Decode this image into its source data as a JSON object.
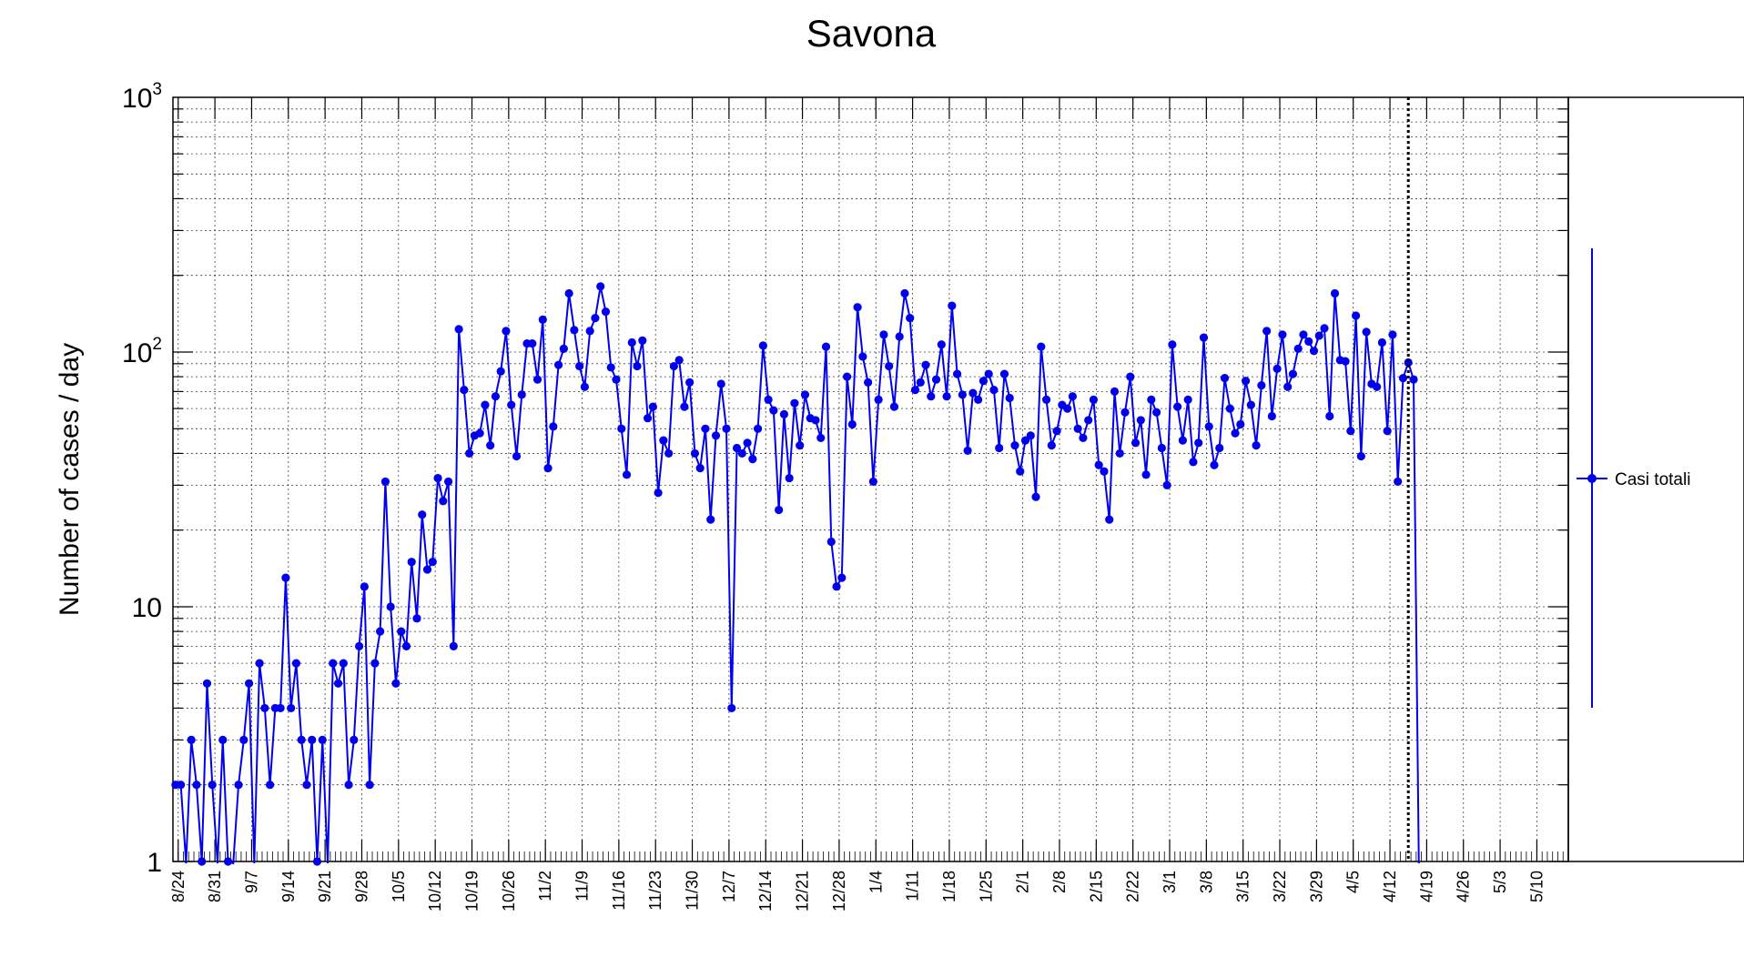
{
  "chart_data": {
    "type": "line",
    "title": "Savona",
    "ylabel": "Number of cases / day",
    "xlabel": "",
    "y_scale": "log",
    "ylim": [
      1,
      1000
    ],
    "y_tick_labels": [
      {
        "value": 1,
        "base": "1",
        "sup": ""
      },
      {
        "value": 10,
        "base": "10",
        "sup": ""
      },
      {
        "value": 100,
        "base": "10",
        "sup": "2"
      },
      {
        "value": 1000,
        "base": "10",
        "sup": "3"
      }
    ],
    "x_start": "2020-08-23",
    "x_end": "2021-05-16",
    "x_tick_labels": [
      "8/24",
      "8/31",
      "9/7",
      "9/14",
      "9/21",
      "9/28",
      "10/5",
      "10/12",
      "10/19",
      "10/26",
      "11/2",
      "11/9",
      "11/16",
      "11/23",
      "11/30",
      "12/7",
      "12/14",
      "12/21",
      "12/28",
      "1/4",
      "1/11",
      "1/18",
      "1/25",
      "2/1",
      "2/8",
      "2/15",
      "2/22",
      "3/1",
      "3/8",
      "3/15",
      "3/22",
      "3/29",
      "4/5",
      "4/12",
      "4/19",
      "4/26",
      "5/3",
      "5/10"
    ],
    "grid": true,
    "legend_position": "right",
    "vertical_marker_date": "2021-04-15",
    "series": [
      {
        "name": "Casi totali",
        "color": "#0000ee",
        "start_date": "2020-08-23",
        "values": [
          2,
          2,
          0,
          3,
          2,
          1,
          5,
          2,
          0,
          3,
          1,
          0,
          2,
          3,
          5,
          0,
          6,
          4,
          2,
          4,
          4,
          13,
          4,
          6,
          3,
          2,
          3,
          1,
          3,
          0,
          6,
          5,
          6,
          2,
          3,
          7,
          12,
          2,
          6,
          8,
          31,
          10,
          5,
          8,
          7,
          15,
          9,
          23,
          14,
          15,
          32,
          26,
          31,
          7,
          123,
          71,
          40,
          47,
          48,
          62,
          43,
          67,
          84,
          121,
          62,
          39,
          68,
          108,
          108,
          78,
          134,
          35,
          51,
          89,
          103,
          170,
          122,
          88,
          73,
          121,
          136,
          181,
          144,
          87,
          78,
          50,
          33,
          109,
          88,
          111,
          55,
          61,
          28,
          45,
          40,
          88,
          93,
          61,
          76,
          40,
          35,
          50,
          22,
          47,
          75,
          50,
          4,
          42,
          40,
          44,
          38,
          50,
          106,
          65,
          59,
          24,
          57,
          32,
          63,
          43,
          68,
          55,
          54,
          46,
          105,
          18,
          12,
          13,
          80,
          52,
          150,
          96,
          76,
          31,
          65,
          117,
          88,
          61,
          115,
          170,
          136,
          71,
          76,
          89,
          67,
          78,
          107,
          67,
          152,
          82,
          68,
          41,
          69,
          65,
          77,
          82,
          71,
          42,
          82,
          66,
          43,
          34,
          45,
          47,
          27,
          105,
          65,
          43,
          49,
          62,
          60,
          67,
          50,
          46,
          54,
          65,
          36,
          34,
          22,
          70,
          40,
          58,
          80,
          44,
          54,
          33,
          65,
          58,
          42,
          30,
          107,
          61,
          45,
          65,
          37,
          44,
          114,
          51,
          36,
          42,
          79,
          60,
          48,
          52,
          77,
          62,
          43,
          74,
          121,
          56,
          86,
          117,
          73,
          82,
          103,
          117,
          110,
          101,
          116,
          124,
          56,
          170,
          93,
          92,
          49,
          139,
          39,
          120,
          75,
          73,
          109,
          49,
          117,
          31,
          79,
          91,
          78,
          0
        ]
      }
    ]
  }
}
